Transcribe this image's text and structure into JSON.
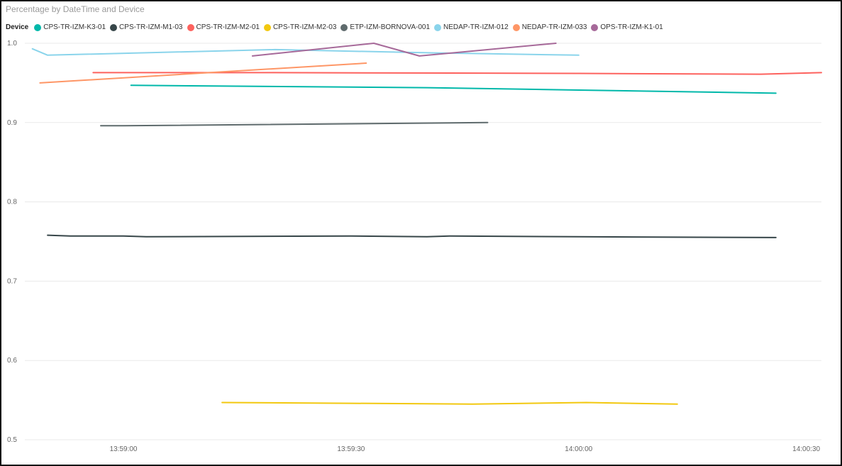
{
  "chart_data": {
    "type": "line",
    "title": "Percentage by DateTime and Device",
    "legend_title": "Device",
    "legend_position": "top-left",
    "xlabel": "",
    "ylabel": "",
    "ylim": [
      0.5,
      1.0
    ],
    "xlim": [
      "13:58:47",
      "14:00:32"
    ],
    "y_ticks": [
      {
        "value": 1.0,
        "label": "1.0"
      },
      {
        "value": 0.9,
        "label": "0.9"
      },
      {
        "value": 0.8,
        "label": "0.8"
      },
      {
        "value": 0.7,
        "label": "0.7"
      },
      {
        "value": 0.6,
        "label": "0.6"
      },
      {
        "value": 0.5,
        "label": "0.5"
      }
    ],
    "x_ticks": [
      "13:59:00",
      "13:59:30",
      "14:00:00",
      "14:00:30"
    ],
    "grid": true,
    "series": [
      {
        "name": "CPS-TR-IZM-K3-01",
        "color": "#01B8AA",
        "points": [
          [
            "13:59:01",
            0.947
          ],
          [
            "13:59:40",
            0.944
          ],
          [
            "14:00:00",
            0.941
          ],
          [
            "14:00:26",
            0.937
          ]
        ]
      },
      {
        "name": "CPS-TR-IZM-M1-03",
        "color": "#374649",
        "points": [
          [
            "13:58:50",
            0.758
          ],
          [
            "13:58:53",
            0.757
          ],
          [
            "13:59:00",
            0.757
          ],
          [
            "13:59:03",
            0.756
          ],
          [
            "13:59:30",
            0.757
          ],
          [
            "13:59:40",
            0.756
          ],
          [
            "13:59:43",
            0.757
          ],
          [
            "14:00:00",
            0.756
          ],
          [
            "14:00:26",
            0.755
          ]
        ]
      },
      {
        "name": "CPS-TR-IZM-M2-01",
        "color": "#FD625E",
        "points": [
          [
            "13:58:56",
            0.963
          ],
          [
            "13:59:20",
            0.963
          ],
          [
            "14:00:00",
            0.962
          ],
          [
            "14:00:24",
            0.961
          ],
          [
            "14:00:32",
            0.963
          ]
        ]
      },
      {
        "name": "CPS-TR-IZM-M2-03",
        "color": "#F2C80F",
        "points": [
          [
            "13:59:13",
            0.547
          ],
          [
            "13:59:30",
            0.546
          ],
          [
            "13:59:46",
            0.545
          ],
          [
            "14:00:01",
            0.547
          ],
          [
            "14:00:13",
            0.545
          ]
        ]
      },
      {
        "name": "ETP-IZM-BORNOVA-001",
        "color": "#5F6B6D",
        "points": [
          [
            "13:58:57",
            0.896
          ],
          [
            "13:59:00",
            0.896
          ],
          [
            "13:59:48",
            0.9
          ]
        ]
      },
      {
        "name": "NEDAP-TR-IZM-012",
        "color": "#8AD4EB",
        "points": [
          [
            "13:58:48",
            0.993
          ],
          [
            "13:58:50",
            0.985
          ],
          [
            "13:59:20",
            0.992
          ],
          [
            "13:59:40",
            0.988
          ],
          [
            "14:00:00",
            0.985
          ]
        ]
      },
      {
        "name": "NEDAP-TR-IZM-033",
        "color": "#FE9666",
        "points": [
          [
            "13:58:49",
            0.95
          ],
          [
            "13:59:32",
            0.975
          ]
        ]
      },
      {
        "name": "OPS-TR-IZM-K1-01",
        "color": "#A66999",
        "points": [
          [
            "13:59:17",
            0.984
          ],
          [
            "13:59:33",
            1.0
          ],
          [
            "13:59:39",
            0.984
          ],
          [
            "13:59:57",
            1.0
          ]
        ]
      }
    ]
  }
}
